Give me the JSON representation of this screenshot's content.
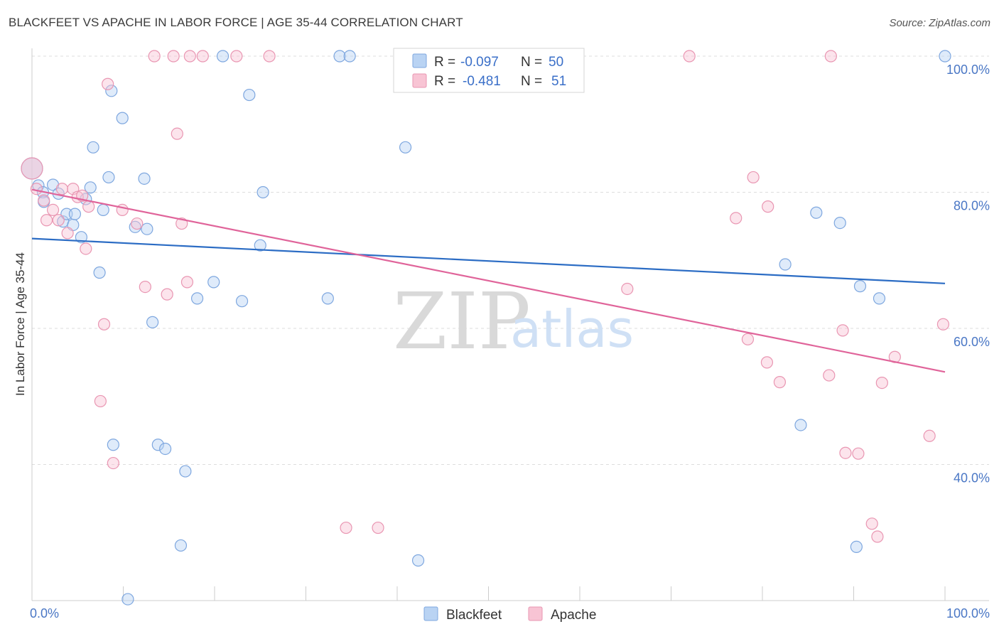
{
  "title": "BLACKFEET VS APACHE IN LABOR FORCE | AGE 35-44 CORRELATION CHART",
  "source": "Source: ZipAtlas.com",
  "watermark": {
    "zip": "ZIP",
    "atlas": "atlas"
  },
  "colors": {
    "blackfeet_fill": "#b9d3f3",
    "blackfeet_stroke": "#7ea7df",
    "blackfeet_line": "#2b6cc4",
    "apache_fill": "#f8c4d4",
    "apache_stroke": "#e996b2",
    "apache_line": "#e0649a",
    "grid": "#dddddd",
    "tick_text": "#4a77c5"
  },
  "legend": {
    "rows": [
      {
        "r_label": "R =",
        "r_value": "-0.097",
        "n_label": "N =",
        "n_value": "50"
      },
      {
        "r_label": "R =",
        "r_value": "-0.481",
        "n_label": "N =",
        "n_value": "51"
      }
    ]
  },
  "chart_data": {
    "type": "scatter",
    "title": "BLACKFEET VS APACHE IN LABOR FORCE | AGE 35-44 CORRELATION CHART",
    "xlabel": "",
    "ylabel": "In Labor Force | Age 35-44",
    "xlim": [
      0,
      100
    ],
    "ylim": [
      20,
      100
    ],
    "x_tick_labels": [
      "0.0%",
      "100.0%"
    ],
    "y_ticks": [
      40,
      60,
      80,
      100
    ],
    "y_tick_labels": [
      "40.0%",
      "60.0%",
      "80.0%",
      "100.0%"
    ],
    "grid": true,
    "legend_position": "top-center",
    "series": [
      {
        "name": "Blackfeet",
        "r": -0.097,
        "n": 50,
        "trend": {
          "x": [
            0,
            100
          ],
          "y": [
            73.2,
            66.6
          ]
        },
        "points": [
          {
            "x": 0.0,
            "y": 83.5,
            "big": true
          },
          {
            "x": 0.7,
            "y": 81.0
          },
          {
            "x": 1.2,
            "y": 80.0
          },
          {
            "x": 1.3,
            "y": 78.6
          },
          {
            "x": 2.3,
            "y": 81.1
          },
          {
            "x": 2.9,
            "y": 79.8
          },
          {
            "x": 3.4,
            "y": 75.7
          },
          {
            "x": 3.8,
            "y": 76.8
          },
          {
            "x": 4.5,
            "y": 75.2
          },
          {
            "x": 4.7,
            "y": 76.8
          },
          {
            "x": 5.4,
            "y": 73.4
          },
          {
            "x": 5.9,
            "y": 79.0
          },
          {
            "x": 6.4,
            "y": 80.7
          },
          {
            "x": 7.4,
            "y": 68.2
          },
          {
            "x": 7.8,
            "y": 77.4
          },
          {
            "x": 8.4,
            "y": 82.2
          },
          {
            "x": 8.9,
            "y": 42.9
          },
          {
            "x": 6.7,
            "y": 86.6
          },
          {
            "x": 8.7,
            "y": 94.9
          },
          {
            "x": 9.9,
            "y": 90.9
          },
          {
            "x": 10.5,
            "y": 20.2
          },
          {
            "x": 11.3,
            "y": 74.9
          },
          {
            "x": 12.3,
            "y": 82.0
          },
          {
            "x": 12.6,
            "y": 74.6
          },
          {
            "x": 13.2,
            "y": 60.9
          },
          {
            "x": 13.8,
            "y": 42.9
          },
          {
            "x": 14.6,
            "y": 42.3
          },
          {
            "x": 16.3,
            "y": 28.1
          },
          {
            "x": 16.8,
            "y": 39.0
          },
          {
            "x": 18.1,
            "y": 64.4
          },
          {
            "x": 19.9,
            "y": 66.8
          },
          {
            "x": 20.9,
            "y": 100.0
          },
          {
            "x": 23.0,
            "y": 64.0
          },
          {
            "x": 23.8,
            "y": 94.3
          },
          {
            "x": 25.0,
            "y": 72.2
          },
          {
            "x": 25.3,
            "y": 80.0
          },
          {
            "x": 32.4,
            "y": 64.4
          },
          {
            "x": 33.7,
            "y": 100.0
          },
          {
            "x": 34.8,
            "y": 100.0
          },
          {
            "x": 40.9,
            "y": 86.6
          },
          {
            "x": 42.3,
            "y": 25.9
          },
          {
            "x": 43.0,
            "y": 100.0
          },
          {
            "x": 82.5,
            "y": 69.4
          },
          {
            "x": 84.2,
            "y": 45.8
          },
          {
            "x": 85.9,
            "y": 77.0
          },
          {
            "x": 88.5,
            "y": 75.5
          },
          {
            "x": 90.3,
            "y": 27.9
          },
          {
            "x": 90.7,
            "y": 66.2
          },
          {
            "x": 92.8,
            "y": 64.4
          },
          {
            "x": 100.0,
            "y": 100.0
          }
        ]
      },
      {
        "name": "Apache",
        "r": -0.481,
        "n": 51,
        "trend": {
          "x": [
            0,
            100
          ],
          "y": [
            80.4,
            53.6
          ]
        },
        "points": [
          {
            "x": 0.0,
            "y": 83.5,
            "big": true
          },
          {
            "x": 0.5,
            "y": 80.5
          },
          {
            "x": 1.3,
            "y": 78.8
          },
          {
            "x": 1.6,
            "y": 75.9
          },
          {
            "x": 2.3,
            "y": 77.4
          },
          {
            "x": 2.9,
            "y": 75.9
          },
          {
            "x": 3.3,
            "y": 80.5
          },
          {
            "x": 3.9,
            "y": 74.0
          },
          {
            "x": 4.5,
            "y": 80.5
          },
          {
            "x": 5.0,
            "y": 79.3
          },
          {
            "x": 5.5,
            "y": 79.5
          },
          {
            "x": 5.9,
            "y": 71.7
          },
          {
            "x": 6.2,
            "y": 77.9
          },
          {
            "x": 7.5,
            "y": 49.3
          },
          {
            "x": 7.9,
            "y": 60.6
          },
          {
            "x": 8.3,
            "y": 95.9
          },
          {
            "x": 8.9,
            "y": 40.2
          },
          {
            "x": 9.9,
            "y": 77.4
          },
          {
            "x": 11.5,
            "y": 75.4
          },
          {
            "x": 12.4,
            "y": 66.1
          },
          {
            "x": 13.4,
            "y": 100.0
          },
          {
            "x": 14.8,
            "y": 65.0
          },
          {
            "x": 15.5,
            "y": 100.0
          },
          {
            "x": 15.9,
            "y": 88.6
          },
          {
            "x": 16.4,
            "y": 75.4
          },
          {
            "x": 17.0,
            "y": 66.8
          },
          {
            "x": 17.3,
            "y": 100.0
          },
          {
            "x": 18.7,
            "y": 100.0
          },
          {
            "x": 22.4,
            "y": 100.0
          },
          {
            "x": 26.0,
            "y": 100.0
          },
          {
            "x": 34.4,
            "y": 30.7
          },
          {
            "x": 37.9,
            "y": 30.7
          },
          {
            "x": 65.2,
            "y": 65.8
          },
          {
            "x": 77.1,
            "y": 76.2
          },
          {
            "x": 78.4,
            "y": 58.4
          },
          {
            "x": 79.0,
            "y": 82.2
          },
          {
            "x": 80.5,
            "y": 55.0
          },
          {
            "x": 80.6,
            "y": 77.9
          },
          {
            "x": 81.9,
            "y": 52.1
          },
          {
            "x": 87.3,
            "y": 53.1
          },
          {
            "x": 87.5,
            "y": 100.0
          },
          {
            "x": 88.8,
            "y": 59.7
          },
          {
            "x": 89.1,
            "y": 41.7
          },
          {
            "x": 90.5,
            "y": 41.6
          },
          {
            "x": 92.0,
            "y": 31.3
          },
          {
            "x": 92.6,
            "y": 29.4
          },
          {
            "x": 93.1,
            "y": 52.0
          },
          {
            "x": 94.5,
            "y": 55.8
          },
          {
            "x": 98.3,
            "y": 44.2
          },
          {
            "x": 99.8,
            "y": 60.6
          },
          {
            "x": 72.0,
            "y": 100.0
          }
        ]
      }
    ]
  }
}
